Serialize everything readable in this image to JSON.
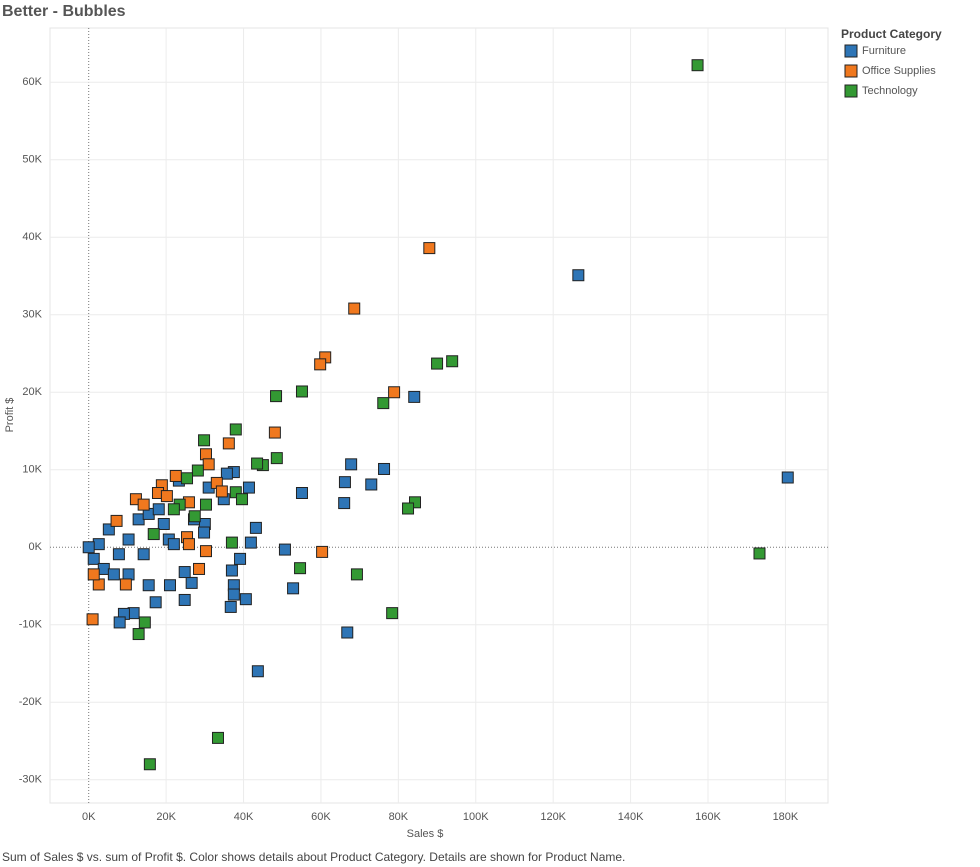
{
  "chart_data": {
    "type": "scatter",
    "title": "Better - Bubbles",
    "x_label": "Sales $",
    "y_label": "Profit $",
    "caption": "Sum of Sales $ vs. sum of Profit $.  Color shows details about Product Category.  Details are shown for Product Name.",
    "legend_title": "Product Category",
    "legend": "right",
    "grid": true,
    "xlim": [
      -10000,
      191000
    ],
    "ylim": [
      -33000,
      67000
    ],
    "xticks": [
      {
        "value": 0,
        "label": "0K"
      },
      {
        "value": 20000,
        "label": "20K"
      },
      {
        "value": 40000,
        "label": "40K"
      },
      {
        "value": 60000,
        "label": "60K"
      },
      {
        "value": 80000,
        "label": "80K"
      },
      {
        "value": 100000,
        "label": "100K"
      },
      {
        "value": 120000,
        "label": "120K"
      },
      {
        "value": 140000,
        "label": "140K"
      },
      {
        "value": 160000,
        "label": "160K"
      },
      {
        "value": 180000,
        "label": "180K"
      }
    ],
    "yticks": [
      {
        "value": -30000,
        "label": "-30K"
      },
      {
        "value": -20000,
        "label": "-20K"
      },
      {
        "value": -10000,
        "label": "-10K"
      },
      {
        "value": 0,
        "label": "0K"
      },
      {
        "value": 10000,
        "label": "10K"
      },
      {
        "value": 20000,
        "label": "20K"
      },
      {
        "value": 30000,
        "label": "30K"
      },
      {
        "value": 40000,
        "label": "40K"
      },
      {
        "value": 50000,
        "label": "50K"
      },
      {
        "value": 60000,
        "label": "60K"
      }
    ],
    "series": [
      {
        "name": "Furniture",
        "color": "#2e75b6",
        "x": [
          180600,
          126500,
          84100,
          76300,
          67800,
          73000,
          66200,
          66000,
          55100,
          50700,
          52800,
          66800,
          43700,
          43200,
          41900,
          41400,
          39100,
          40600,
          37500,
          37500,
          36700,
          37000,
          37500,
          35700,
          34900,
          31000,
          30000,
          29800,
          26600,
          24800,
          24800,
          21000,
          23300,
          15500,
          17300,
          11600,
          9100,
          8000,
          2600,
          5200,
          7800,
          10300,
          12900,
          15500,
          18100,
          20700,
          1300,
          3900,
          6500,
          10300,
          14200,
          19400,
          22000,
          27200,
          0
        ],
        "y": [
          9000,
          35100,
          19400,
          10100,
          10700,
          8100,
          8400,
          5700,
          7000,
          -300,
          -5300,
          -11000,
          -16000,
          2500,
          600,
          7700,
          -1500,
          -6700,
          -4900,
          -6100,
          -7700,
          -3000,
          9700,
          9500,
          6200,
          7700,
          3000,
          1900,
          -4600,
          -3200,
          -6800,
          -4900,
          8600,
          -4900,
          -7100,
          -8500,
          -8600,
          -9700,
          400,
          2300,
          -900,
          1000,
          3600,
          4300,
          4900,
          1000,
          -1500,
          -2800,
          -3500,
          -3500,
          -900,
          3000,
          400,
          3600,
          0
        ]
      },
      {
        "name": "Office Supplies",
        "color": "#f0781e",
        "x": [
          88000,
          68600,
          61100,
          59800,
          78900,
          48100,
          36200,
          30300,
          31000,
          33100,
          34400,
          30300,
          28500,
          60300,
          1000,
          22500,
          18900,
          17900,
          20200,
          25900,
          12200,
          2600,
          9600,
          1300,
          7200,
          25400,
          25900,
          14200
        ],
        "y": [
          38600,
          30800,
          24500,
          23600,
          20000,
          14800,
          13400,
          12000,
          10700,
          8300,
          7200,
          -500,
          -2800,
          -600,
          -9300,
          9200,
          8000,
          7000,
          6600,
          5800,
          6200,
          -4800,
          -4800,
          -3500,
          3400,
          1300,
          400,
          5500
        ]
      },
      {
        "name": "Technology",
        "color": "#339933",
        "x": [
          157300,
          173300,
          93900,
          90000,
          76100,
          55100,
          48400,
          38000,
          29800,
          48600,
          45000,
          43500,
          38000,
          39600,
          30300,
          28200,
          25400,
          84300,
          82500,
          54600,
          69300,
          78400,
          37000,
          33400,
          15800,
          14500,
          12900,
          23500,
          22000,
          16800,
          27400
        ],
        "y": [
          62200,
          -800,
          24000,
          23700,
          18600,
          20100,
          19500,
          15200,
          13800,
          11500,
          10600,
          10800,
          7100,
          6200,
          5500,
          9900,
          8900,
          5800,
          5000,
          -2700,
          -3500,
          -8500,
          600,
          -24600,
          -28000,
          -9700,
          -11200,
          5500,
          4900,
          1700,
          4000
        ]
      }
    ]
  }
}
